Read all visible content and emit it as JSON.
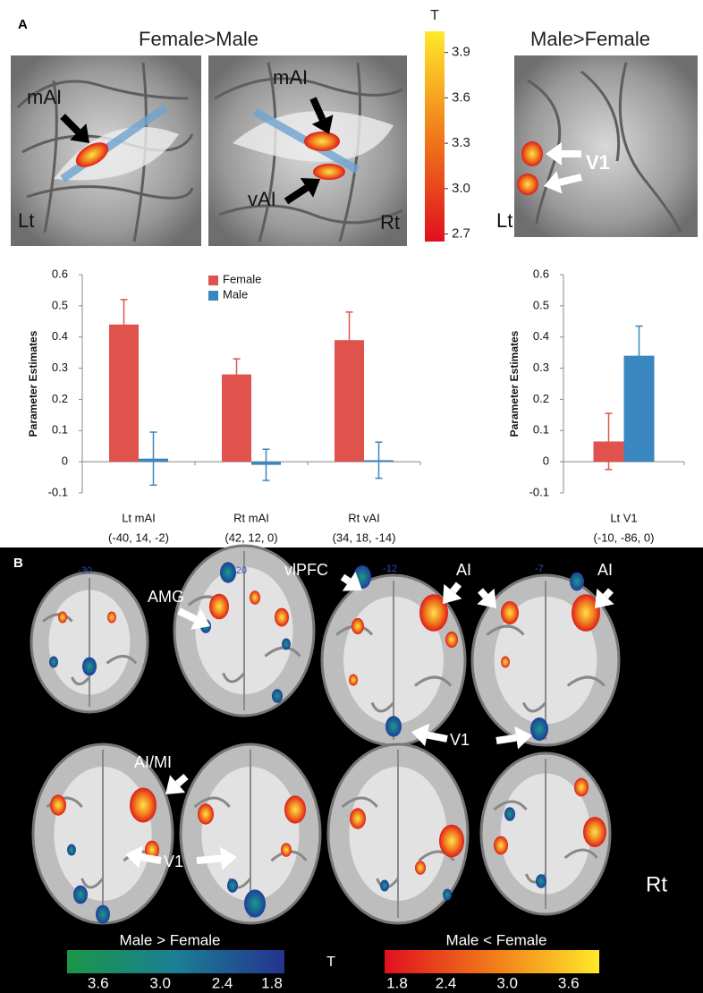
{
  "panel_a": {
    "label": "A",
    "titles": [
      "Female>Male",
      "Male>Female"
    ],
    "image_labels": [
      "mAI",
      "Lt",
      "mAI",
      "vAI",
      "Rt",
      "V1",
      "Lt"
    ],
    "colorbar": {
      "title": "T",
      "lim": [
        2.65,
        4.04
      ],
      "ticks": [
        3.9,
        3.6,
        3.3,
        {
          "value": 3.0,
          "label": "3.0"
        },
        2.7
      ]
    }
  },
  "chart_data": [
    {
      "type": "bar",
      "ylabel": "Parameter Estimates",
      "categories": [
        "Lt mAI",
        "Rt mAI",
        "Rt vAI"
      ],
      "category_sublabels": [
        "(-40, 14, -2)",
        "(42, 12, 0)",
        "(34, 18, -14)"
      ],
      "series": [
        {
          "name": "Female",
          "color": "#e0534c",
          "values": [
            0.44,
            0.28,
            0.39
          ],
          "errors": [
            0.08,
            0.05,
            0.09
          ]
        },
        {
          "name": "Male",
          "color": "#3a86be",
          "values": [
            0.01,
            -0.01,
            0.005
          ],
          "errors": [
            0.085,
            0.05,
            0.058
          ]
        }
      ],
      "ylim": [
        -0.1,
        0.6
      ],
      "yticks": [
        -0.1,
        0,
        0.1,
        0.2,
        0.3,
        0.4,
        0.5,
        0.6
      ],
      "legend": "top-center"
    },
    {
      "type": "bar",
      "ylabel": "Parameter Estimates",
      "categories": [
        "Lt V1"
      ],
      "category_sublabels": [
        "(-10, -86, 0)"
      ],
      "series": [
        {
          "color": "#e0534c",
          "values": [
            0.065
          ],
          "errors": [
            0.09
          ]
        },
        {
          "color": "#3a86be",
          "values": [
            0.34
          ],
          "errors": [
            0.095
          ]
        }
      ],
      "ylim": [
        -0.1,
        0.6
      ],
      "yticks": [
        -0.1,
        0,
        0.1,
        0.2,
        0.3,
        0.4,
        0.5,
        0.6
      ]
    }
  ],
  "panel_b": {
    "label": "B",
    "slice_labels": [
      "-30",
      "-20",
      "-12",
      "-7"
    ],
    "image_labels": [
      "AMG",
      "vlPFC",
      "AI",
      "AI",
      "V1",
      "AI/MI",
      "V1",
      "Rt"
    ],
    "t_label": "T",
    "colorbars": [
      {
        "title": "Male > Female",
        "lim": [
          3.9,
          1.8
        ],
        "ticks": [
          3.6,
          {
            "value": 3.0,
            "label": "3.0"
          },
          2.4,
          1.8
        ]
      },
      {
        "title": "Male < Female",
        "lim": [
          1.8,
          3.9
        ],
        "ticks": [
          1.8,
          2.4,
          {
            "value": 3.0,
            "label": "3.0"
          },
          3.6
        ]
      }
    ]
  }
}
